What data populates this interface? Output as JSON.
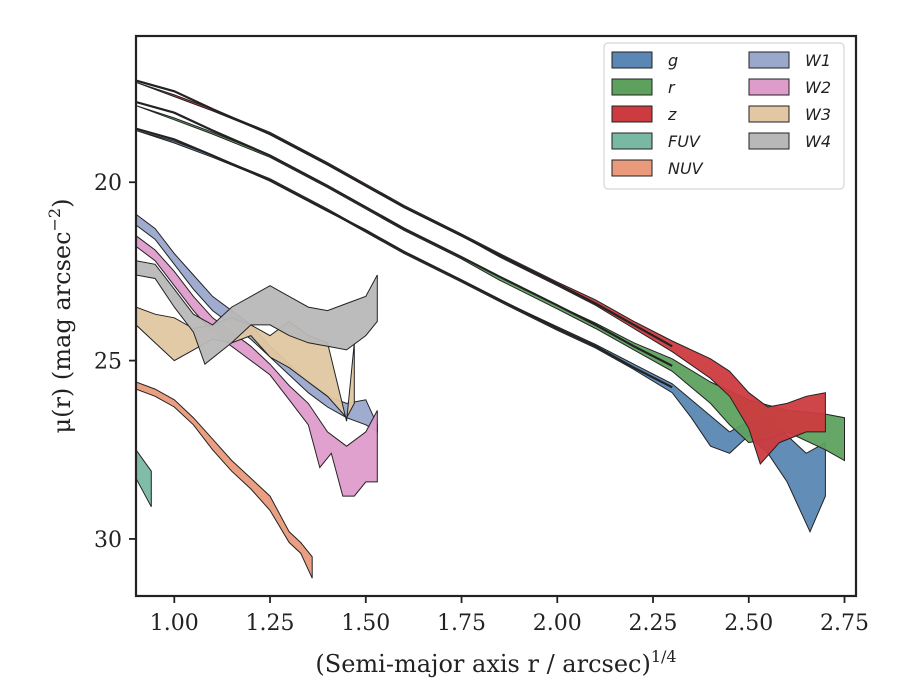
{
  "chart_data": {
    "type": "area",
    "xlabel": "(Semi-major axis r / arcsec)",
    "xlabel_exponent": "1/4",
    "ylabel": "μ(r) (mag arcsec",
    "ylabel_exponent": "−2",
    "xlim": [
      0.9,
      2.78
    ],
    "ylim": [
      31.6,
      15.9
    ],
    "y_inverted": true,
    "xticks": [
      1.0,
      1.25,
      1.5,
      1.75,
      2.0,
      2.25,
      2.5,
      2.75
    ],
    "xtick_labels": [
      "1.00",
      "1.25",
      "1.50",
      "1.75",
      "2.00",
      "2.25",
      "2.50",
      "2.75"
    ],
    "yticks": [
      20,
      25,
      30
    ],
    "ytick_labels": [
      "20",
      "25",
      "30"
    ],
    "legend": {
      "placement": "top-right",
      "columns": 2
    },
    "series": [
      {
        "name": "g",
        "color": "#5a87b3",
        "upper": [
          [
            0.9,
            18.55
          ],
          [
            1.0,
            18.85
          ],
          [
            1.1,
            19.25
          ],
          [
            1.25,
            19.9
          ],
          [
            1.4,
            20.75
          ],
          [
            1.5,
            21.35
          ],
          [
            1.6,
            21.95
          ],
          [
            1.75,
            22.75
          ],
          [
            1.85,
            23.3
          ],
          [
            2.0,
            24.05
          ],
          [
            2.1,
            24.55
          ],
          [
            2.2,
            25.1
          ],
          [
            2.3,
            25.65
          ],
          [
            2.4,
            26.55
          ],
          [
            2.45,
            27.0
          ],
          [
            2.5,
            26.7
          ],
          [
            2.55,
            26.6
          ],
          [
            2.6,
            27.1
          ],
          [
            2.65,
            27.6
          ],
          [
            2.7,
            27.3
          ]
        ],
        "lower": [
          [
            0.9,
            18.55
          ],
          [
            1.0,
            18.9
          ],
          [
            1.1,
            19.3
          ],
          [
            1.25,
            19.95
          ],
          [
            1.4,
            20.8
          ],
          [
            1.5,
            21.4
          ],
          [
            1.6,
            22.0
          ],
          [
            1.75,
            22.8
          ],
          [
            1.85,
            23.35
          ],
          [
            2.0,
            24.15
          ],
          [
            2.1,
            24.65
          ],
          [
            2.2,
            25.25
          ],
          [
            2.3,
            25.9
          ],
          [
            2.35,
            26.6
          ],
          [
            2.4,
            27.4
          ],
          [
            2.45,
            27.6
          ],
          [
            2.5,
            27.1
          ],
          [
            2.55,
            27.6
          ],
          [
            2.6,
            28.4
          ],
          [
            2.66,
            29.8
          ],
          [
            2.7,
            28.8
          ]
        ]
      },
      {
        "name": "r",
        "color": "#5ea15f",
        "upper": [
          [
            0.9,
            17.85
          ],
          [
            1.0,
            18.2
          ],
          [
            1.1,
            18.6
          ],
          [
            1.25,
            19.25
          ],
          [
            1.4,
            20.1
          ],
          [
            1.5,
            20.7
          ],
          [
            1.6,
            21.3
          ],
          [
            1.75,
            22.1
          ],
          [
            1.85,
            22.65
          ],
          [
            2.0,
            23.45
          ],
          [
            2.1,
            23.95
          ],
          [
            2.2,
            24.5
          ],
          [
            2.3,
            24.95
          ],
          [
            2.4,
            25.6
          ],
          [
            2.5,
            26.1
          ],
          [
            2.6,
            26.4
          ],
          [
            2.7,
            26.5
          ],
          [
            2.75,
            26.6
          ]
        ],
        "lower": [
          [
            0.9,
            17.85
          ],
          [
            1.0,
            18.25
          ],
          [
            1.1,
            18.65
          ],
          [
            1.25,
            19.3
          ],
          [
            1.4,
            20.15
          ],
          [
            1.5,
            20.75
          ],
          [
            1.6,
            21.35
          ],
          [
            1.75,
            22.15
          ],
          [
            1.85,
            22.75
          ],
          [
            2.0,
            23.55
          ],
          [
            2.1,
            24.1
          ],
          [
            2.2,
            24.7
          ],
          [
            2.3,
            25.3
          ],
          [
            2.4,
            26.2
          ],
          [
            2.45,
            26.8
          ],
          [
            2.5,
            27.3
          ],
          [
            2.55,
            27.2
          ],
          [
            2.6,
            27.0
          ],
          [
            2.7,
            27.5
          ],
          [
            2.75,
            27.8
          ]
        ]
      },
      {
        "name": "z",
        "color": "#cc3b3f",
        "upper": [
          [
            0.9,
            17.2
          ],
          [
            1.0,
            17.55
          ],
          [
            1.1,
            17.95
          ],
          [
            1.25,
            18.6
          ],
          [
            1.4,
            19.45
          ],
          [
            1.5,
            20.05
          ],
          [
            1.6,
            20.65
          ],
          [
            1.75,
            21.45
          ],
          [
            1.85,
            22.0
          ],
          [
            2.0,
            22.8
          ],
          [
            2.1,
            23.3
          ],
          [
            2.2,
            23.9
          ],
          [
            2.3,
            24.45
          ],
          [
            2.4,
            24.95
          ],
          [
            2.45,
            25.3
          ],
          [
            2.5,
            25.9
          ],
          [
            2.55,
            26.3
          ],
          [
            2.6,
            26.2
          ],
          [
            2.65,
            26.0
          ],
          [
            2.7,
            25.9
          ]
        ],
        "lower": [
          [
            0.9,
            17.2
          ],
          [
            1.0,
            17.6
          ],
          [
            1.1,
            18.0
          ],
          [
            1.25,
            18.65
          ],
          [
            1.4,
            19.5
          ],
          [
            1.5,
            20.1
          ],
          [
            1.6,
            20.7
          ],
          [
            1.75,
            21.5
          ],
          [
            1.85,
            22.1
          ],
          [
            2.0,
            22.9
          ],
          [
            2.1,
            23.45
          ],
          [
            2.2,
            24.1
          ],
          [
            2.3,
            24.75
          ],
          [
            2.4,
            25.5
          ],
          [
            2.45,
            26.0
          ],
          [
            2.5,
            26.9
          ],
          [
            2.53,
            27.9
          ],
          [
            2.58,
            27.3
          ],
          [
            2.65,
            27.0
          ],
          [
            2.7,
            27.0
          ]
        ]
      },
      {
        "name": "FUV",
        "color": "#79b8a3",
        "upper": [
          [
            0.9,
            27.5
          ],
          [
            0.94,
            28.1
          ]
        ],
        "lower": [
          [
            0.9,
            28.3
          ],
          [
            0.94,
            29.1
          ]
        ]
      },
      {
        "name": "NUV",
        "color": "#e99a7b",
        "upper": [
          [
            0.9,
            25.6
          ],
          [
            0.95,
            25.8
          ],
          [
            1.0,
            26.1
          ],
          [
            1.05,
            26.6
          ],
          [
            1.1,
            27.2
          ],
          [
            1.15,
            27.8
          ],
          [
            1.2,
            28.3
          ],
          [
            1.25,
            28.8
          ],
          [
            1.3,
            29.8
          ],
          [
            1.33,
            30.1
          ],
          [
            1.36,
            30.5
          ]
        ],
        "lower": [
          [
            0.9,
            25.8
          ],
          [
            0.95,
            26.0
          ],
          [
            1.0,
            26.3
          ],
          [
            1.05,
            26.8
          ],
          [
            1.1,
            27.5
          ],
          [
            1.15,
            28.1
          ],
          [
            1.2,
            28.6
          ],
          [
            1.25,
            29.2
          ],
          [
            1.3,
            30.1
          ],
          [
            1.33,
            30.4
          ],
          [
            1.36,
            31.1
          ]
        ]
      },
      {
        "name": "W1",
        "color": "#9aa8cc",
        "upper": [
          [
            0.9,
            20.9
          ],
          [
            0.95,
            21.3
          ],
          [
            1.0,
            22.0
          ],
          [
            1.05,
            22.6
          ],
          [
            1.1,
            23.2
          ],
          [
            1.2,
            24.0
          ],
          [
            1.25,
            24.6
          ],
          [
            1.3,
            25.1
          ],
          [
            1.35,
            25.6
          ],
          [
            1.4,
            26.0
          ],
          [
            1.45,
            26.2
          ],
          [
            1.5,
            26.1
          ],
          [
            1.53,
            26.8
          ]
        ],
        "lower": [
          [
            0.9,
            21.2
          ],
          [
            0.95,
            21.6
          ],
          [
            1.0,
            22.3
          ],
          [
            1.05,
            23.0
          ],
          [
            1.1,
            23.6
          ],
          [
            1.2,
            24.4
          ],
          [
            1.25,
            24.9
          ],
          [
            1.3,
            25.4
          ],
          [
            1.35,
            25.9
          ],
          [
            1.4,
            26.3
          ],
          [
            1.45,
            26.6
          ],
          [
            1.5,
            26.8
          ],
          [
            1.53,
            27.0
          ]
        ]
      },
      {
        "name": "W2",
        "color": "#de9ccb",
        "upper": [
          [
            0.9,
            21.5
          ],
          [
            0.95,
            21.9
          ],
          [
            1.0,
            22.5
          ],
          [
            1.05,
            23.2
          ],
          [
            1.1,
            23.8
          ],
          [
            1.2,
            24.6
          ],
          [
            1.25,
            25.1
          ],
          [
            1.3,
            25.7
          ],
          [
            1.35,
            26.2
          ],
          [
            1.4,
            27.0
          ],
          [
            1.45,
            27.4
          ],
          [
            1.5,
            27.0
          ],
          [
            1.53,
            26.4
          ]
        ],
        "lower": [
          [
            0.9,
            21.8
          ],
          [
            0.95,
            22.2
          ],
          [
            1.0,
            22.9
          ],
          [
            1.05,
            23.6
          ],
          [
            1.1,
            24.2
          ],
          [
            1.2,
            25.0
          ],
          [
            1.25,
            25.4
          ],
          [
            1.3,
            26.1
          ],
          [
            1.35,
            26.8
          ],
          [
            1.38,
            28.0
          ],
          [
            1.41,
            27.6
          ],
          [
            1.44,
            28.8
          ],
          [
            1.47,
            28.8
          ],
          [
            1.5,
            28.4
          ],
          [
            1.53,
            28.4
          ]
        ]
      },
      {
        "name": "W3",
        "color": "#e2c7a2",
        "upper": [
          [
            0.9,
            23.5
          ],
          [
            0.95,
            23.7
          ],
          [
            1.0,
            23.8
          ],
          [
            1.05,
            24.1
          ],
          [
            1.1,
            24.0
          ],
          [
            1.15,
            23.8
          ],
          [
            1.2,
            24.0
          ],
          [
            1.25,
            24.3
          ],
          [
            1.3,
            23.9
          ],
          [
            1.35,
            24.3
          ],
          [
            1.4,
            24.5
          ],
          [
            1.45,
            26.7
          ],
          [
            1.47,
            24.5
          ]
        ],
        "lower": [
          [
            0.9,
            24.0
          ],
          [
            0.95,
            24.5
          ],
          [
            1.0,
            25.0
          ],
          [
            1.05,
            24.7
          ],
          [
            1.1,
            24.4
          ],
          [
            1.15,
            24.5
          ],
          [
            1.2,
            24.3
          ],
          [
            1.25,
            24.9
          ],
          [
            1.3,
            25.2
          ],
          [
            1.35,
            25.6
          ],
          [
            1.4,
            26.0
          ],
          [
            1.45,
            26.6
          ],
          [
            1.47,
            26.2
          ]
        ]
      },
      {
        "name": "W4",
        "color": "#b8b8b8",
        "upper": [
          [
            0.9,
            22.2
          ],
          [
            0.95,
            22.3
          ],
          [
            1.0,
            23.0
          ],
          [
            1.05,
            23.7
          ],
          [
            1.1,
            24.0
          ],
          [
            1.15,
            23.5
          ],
          [
            1.2,
            23.2
          ],
          [
            1.25,
            22.9
          ],
          [
            1.3,
            23.2
          ],
          [
            1.35,
            23.5
          ],
          [
            1.4,
            23.6
          ],
          [
            1.45,
            23.4
          ],
          [
            1.5,
            23.2
          ],
          [
            1.53,
            22.6
          ]
        ],
        "lower": [
          [
            0.9,
            22.6
          ],
          [
            0.95,
            22.7
          ],
          [
            1.0,
            23.5
          ],
          [
            1.05,
            24.2
          ],
          [
            1.08,
            25.1
          ],
          [
            1.15,
            24.5
          ],
          [
            1.2,
            24.0
          ],
          [
            1.25,
            24.0
          ],
          [
            1.3,
            24.3
          ],
          [
            1.35,
            24.5
          ],
          [
            1.4,
            24.6
          ],
          [
            1.45,
            24.7
          ],
          [
            1.5,
            24.3
          ],
          [
            1.53,
            23.9
          ]
        ]
      }
    ],
    "curves": [
      {
        "color": "#222222",
        "points": [
          [
            0.9,
            17.15
          ],
          [
            1.0,
            17.45
          ],
          [
            1.1,
            17.95
          ],
          [
            1.25,
            18.65
          ],
          [
            1.4,
            19.5
          ],
          [
            1.5,
            20.1
          ],
          [
            1.6,
            20.7
          ],
          [
            1.75,
            21.5
          ],
          [
            1.85,
            22.05
          ],
          [
            2.0,
            22.85
          ],
          [
            2.1,
            23.4
          ],
          [
            2.2,
            24.0
          ],
          [
            2.3,
            24.6
          ]
        ]
      },
      {
        "color": "#222222",
        "points": [
          [
            0.9,
            17.75
          ],
          [
            1.0,
            18.05
          ],
          [
            1.1,
            18.55
          ],
          [
            1.25,
            19.25
          ],
          [
            1.4,
            20.1
          ],
          [
            1.5,
            20.7
          ],
          [
            1.6,
            21.3
          ],
          [
            1.75,
            22.1
          ],
          [
            1.85,
            22.65
          ],
          [
            2.0,
            23.45
          ],
          [
            2.1,
            24.0
          ],
          [
            2.2,
            24.6
          ],
          [
            2.3,
            25.15
          ]
        ]
      },
      {
        "color": "#222222",
        "points": [
          [
            0.9,
            18.5
          ],
          [
            1.0,
            18.8
          ],
          [
            1.1,
            19.25
          ],
          [
            1.25,
            19.95
          ],
          [
            1.4,
            20.8
          ],
          [
            1.5,
            21.35
          ],
          [
            1.6,
            21.95
          ],
          [
            1.75,
            22.75
          ],
          [
            1.85,
            23.3
          ],
          [
            2.0,
            24.1
          ],
          [
            2.1,
            24.6
          ],
          [
            2.2,
            25.2
          ],
          [
            2.3,
            25.75
          ]
        ]
      }
    ]
  }
}
